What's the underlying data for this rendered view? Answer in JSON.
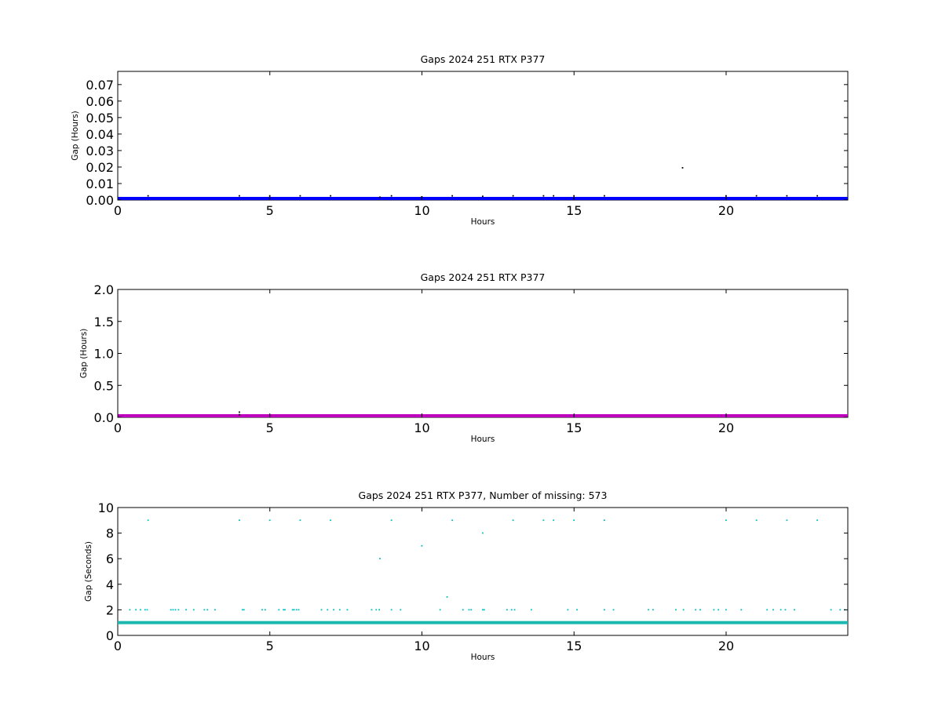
{
  "colors": {
    "background": "#ffffff",
    "axes": "#000000",
    "series_black": "#000000",
    "series_blue": "#0000ff",
    "series_magenta": "#bf00bf",
    "series_cyan": "#00bfbf",
    "band_cyan": "#1cb8b0"
  },
  "chart_data": [
    {
      "type": "scatter",
      "title": "Gaps 2024 251 RTX  P377",
      "xlabel": "Hours",
      "ylabel": "Gap (Hours)",
      "xlim": [
        0,
        24
      ],
      "ylim": [
        0,
        0.078
      ],
      "xticks": [
        0,
        5,
        10,
        15,
        20
      ],
      "yticks": [
        0.0,
        0.01,
        0.02,
        0.03,
        0.04,
        0.05,
        0.06,
        0.07
      ],
      "ytick_labels": [
        "0.00",
        "0.01",
        "0.02",
        "0.03",
        "0.04",
        "0.05",
        "0.06",
        "0.07"
      ],
      "grid": false,
      "series": [
        {
          "color": "#0000ff",
          "x_range": [
            0,
            24
          ],
          "y": 0.0003,
          "style": "band"
        },
        {
          "color": "#000000",
          "x": [
            1.0,
            4.0,
            5.0,
            6.0,
            7.0,
            8.62,
            9.0,
            10.0,
            11.0,
            12.0,
            13.0,
            14.0,
            14.33,
            15.0,
            16.0,
            18.57,
            20.0,
            21.0,
            22.0,
            23.0
          ],
          "y": [
            0.0025,
            0.0025,
            0.0025,
            0.0025,
            0.0025,
            0.0017,
            0.0025,
            0.0019,
            0.0025,
            0.0022,
            0.0025,
            0.0025,
            0.0025,
            0.0025,
            0.0025,
            0.0195,
            0.0025,
            0.0025,
            0.0025,
            0.0025
          ],
          "style": "points"
        }
      ]
    },
    {
      "type": "scatter",
      "title": "Gaps 2024 251 RTX  P377",
      "xlabel": "Hours",
      "ylabel": "Gap (Hours)",
      "xlim": [
        0,
        24
      ],
      "ylim": [
        0,
        2.0
      ],
      "xticks": [
        0,
        5,
        10,
        15,
        20
      ],
      "yticks": [
        0.0,
        0.5,
        1.0,
        1.5,
        2.0
      ],
      "ytick_labels": [
        "0.0",
        "0.5",
        "1.0",
        "1.5",
        "2.0"
      ],
      "grid": false,
      "series": [
        {
          "color": "#bf00bf",
          "x_range": [
            0,
            24
          ],
          "y": 0.0,
          "style": "band"
        },
        {
          "color": "#000000",
          "x": [
            4.0,
            4.0
          ],
          "y": [
            0.08,
            0.04
          ],
          "style": "points"
        }
      ]
    },
    {
      "type": "scatter",
      "title": "Gaps 2024 251 RTX  P377, Number of missing: 573",
      "xlabel": "Hours",
      "ylabel": "Gap (Seconds)",
      "xlim": [
        0,
        24
      ],
      "ylim": [
        0,
        10
      ],
      "xticks": [
        0,
        5,
        10,
        15,
        20
      ],
      "yticks": [
        0,
        2,
        4,
        6,
        8,
        10
      ],
      "ytick_labels": [
        "0",
        "2",
        "4",
        "6",
        "8",
        "10"
      ],
      "grid": false,
      "series": [
        {
          "color": "#1cb8b0",
          "x_range": [
            0,
            24
          ],
          "y": 1.0,
          "style": "band"
        },
        {
          "color": "#00bfbf",
          "x": [
            1.0,
            4.0,
            5.0,
            6.0,
            7.0,
            9.0,
            11.0,
            13.0,
            14.0,
            14.33,
            15.0,
            16.0,
            20.0,
            21.0,
            22.0,
            23.0
          ],
          "y": [
            9,
            9,
            9,
            9,
            9,
            9,
            9,
            9,
            9,
            9,
            9,
            9,
            9,
            9,
            9,
            9
          ],
          "style": "points"
        },
        {
          "color": "#00bfbf",
          "x": [
            12.0,
            10.0,
            8.62,
            10.83
          ],
          "y": [
            8,
            7,
            6,
            3
          ],
          "style": "points"
        },
        {
          "color": "#00bfbf",
          "x": [
            0.4,
            0.6,
            0.75,
            0.9,
            0.97,
            1.75,
            1.82,
            1.9,
            2.0,
            2.25,
            2.5,
            2.85,
            2.95,
            3.2,
            4.1,
            4.15,
            4.75,
            4.85,
            5.3,
            5.45,
            5.5,
            5.75,
            5.8,
            5.88,
            5.95,
            6.7,
            6.9,
            7.1,
            7.3,
            7.55,
            8.35,
            8.5,
            8.6,
            9.0,
            9.3,
            10.6,
            11.35,
            11.55,
            11.62,
            12.0,
            12.05,
            12.8,
            12.95,
            13.05,
            13.6,
            14.8,
            15.1,
            16.0,
            16.3,
            17.45,
            17.6,
            18.35,
            18.6,
            19.0,
            19.15,
            19.6,
            19.75,
            20.0,
            20.5,
            21.35,
            21.55,
            21.8,
            21.95,
            22.25,
            23.45,
            23.75,
            23.9
          ],
          "y": [
            2,
            2,
            2,
            2,
            2,
            2,
            2,
            2,
            2,
            2,
            2,
            2,
            2,
            2,
            2,
            2,
            2,
            2,
            2,
            2,
            2,
            2,
            2,
            2,
            2,
            2,
            2,
            2,
            2,
            2,
            2,
            2,
            2,
            2,
            2,
            2,
            2,
            2,
            2,
            2,
            2,
            2,
            2,
            2,
            2,
            2,
            2,
            2,
            2,
            2,
            2,
            2,
            2,
            2,
            2,
            2,
            2,
            2,
            2,
            2,
            2,
            2,
            2,
            2,
            2,
            2,
            2
          ],
          "style": "points"
        }
      ]
    }
  ]
}
